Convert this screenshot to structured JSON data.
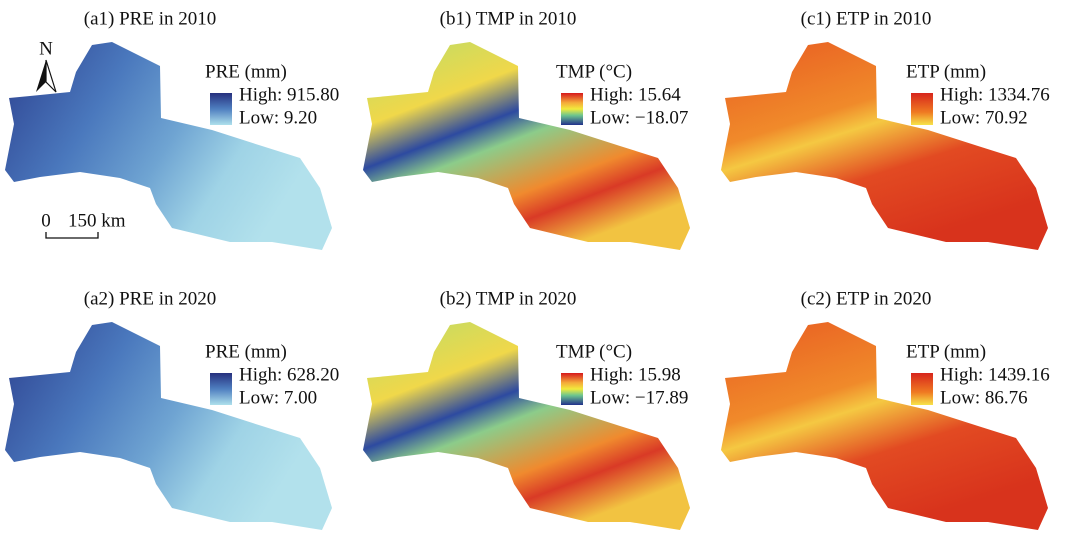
{
  "panels": [
    {
      "title": "(a1) PRE in 2010",
      "legend_title": "PRE (mm)",
      "high": "High: 915.80",
      "low": "Low: 9.20",
      "palette": "pre"
    },
    {
      "title": "(b1) TMP in 2010",
      "legend_title": "TMP (°C)",
      "high": "High: 15.64",
      "low": "Low: −18.07",
      "palette": "tmp"
    },
    {
      "title": "(c1) ETP in 2010",
      "legend_title": "ETP (mm)",
      "high": "High: 1334.76",
      "low": "Low: 70.92",
      "palette": "etp"
    },
    {
      "title": "(a2) PRE in 2020",
      "legend_title": "PRE (mm)",
      "high": "High: 628.20",
      "low": "Low: 7.00",
      "palette": "pre"
    },
    {
      "title": "(b2) TMP in 2020",
      "legend_title": "TMP (°C)",
      "high": "High: 15.98",
      "low": "Low: −17.89",
      "palette": "tmp"
    },
    {
      "title": "(c2) ETP in 2020",
      "legend_title": "ETP (mm)",
      "high": "High: 1439.16",
      "low": "Low: 86.76",
      "palette": "etp"
    }
  ],
  "north_label": "N",
  "scale_zero": "0",
  "scale_label": "150 km"
}
